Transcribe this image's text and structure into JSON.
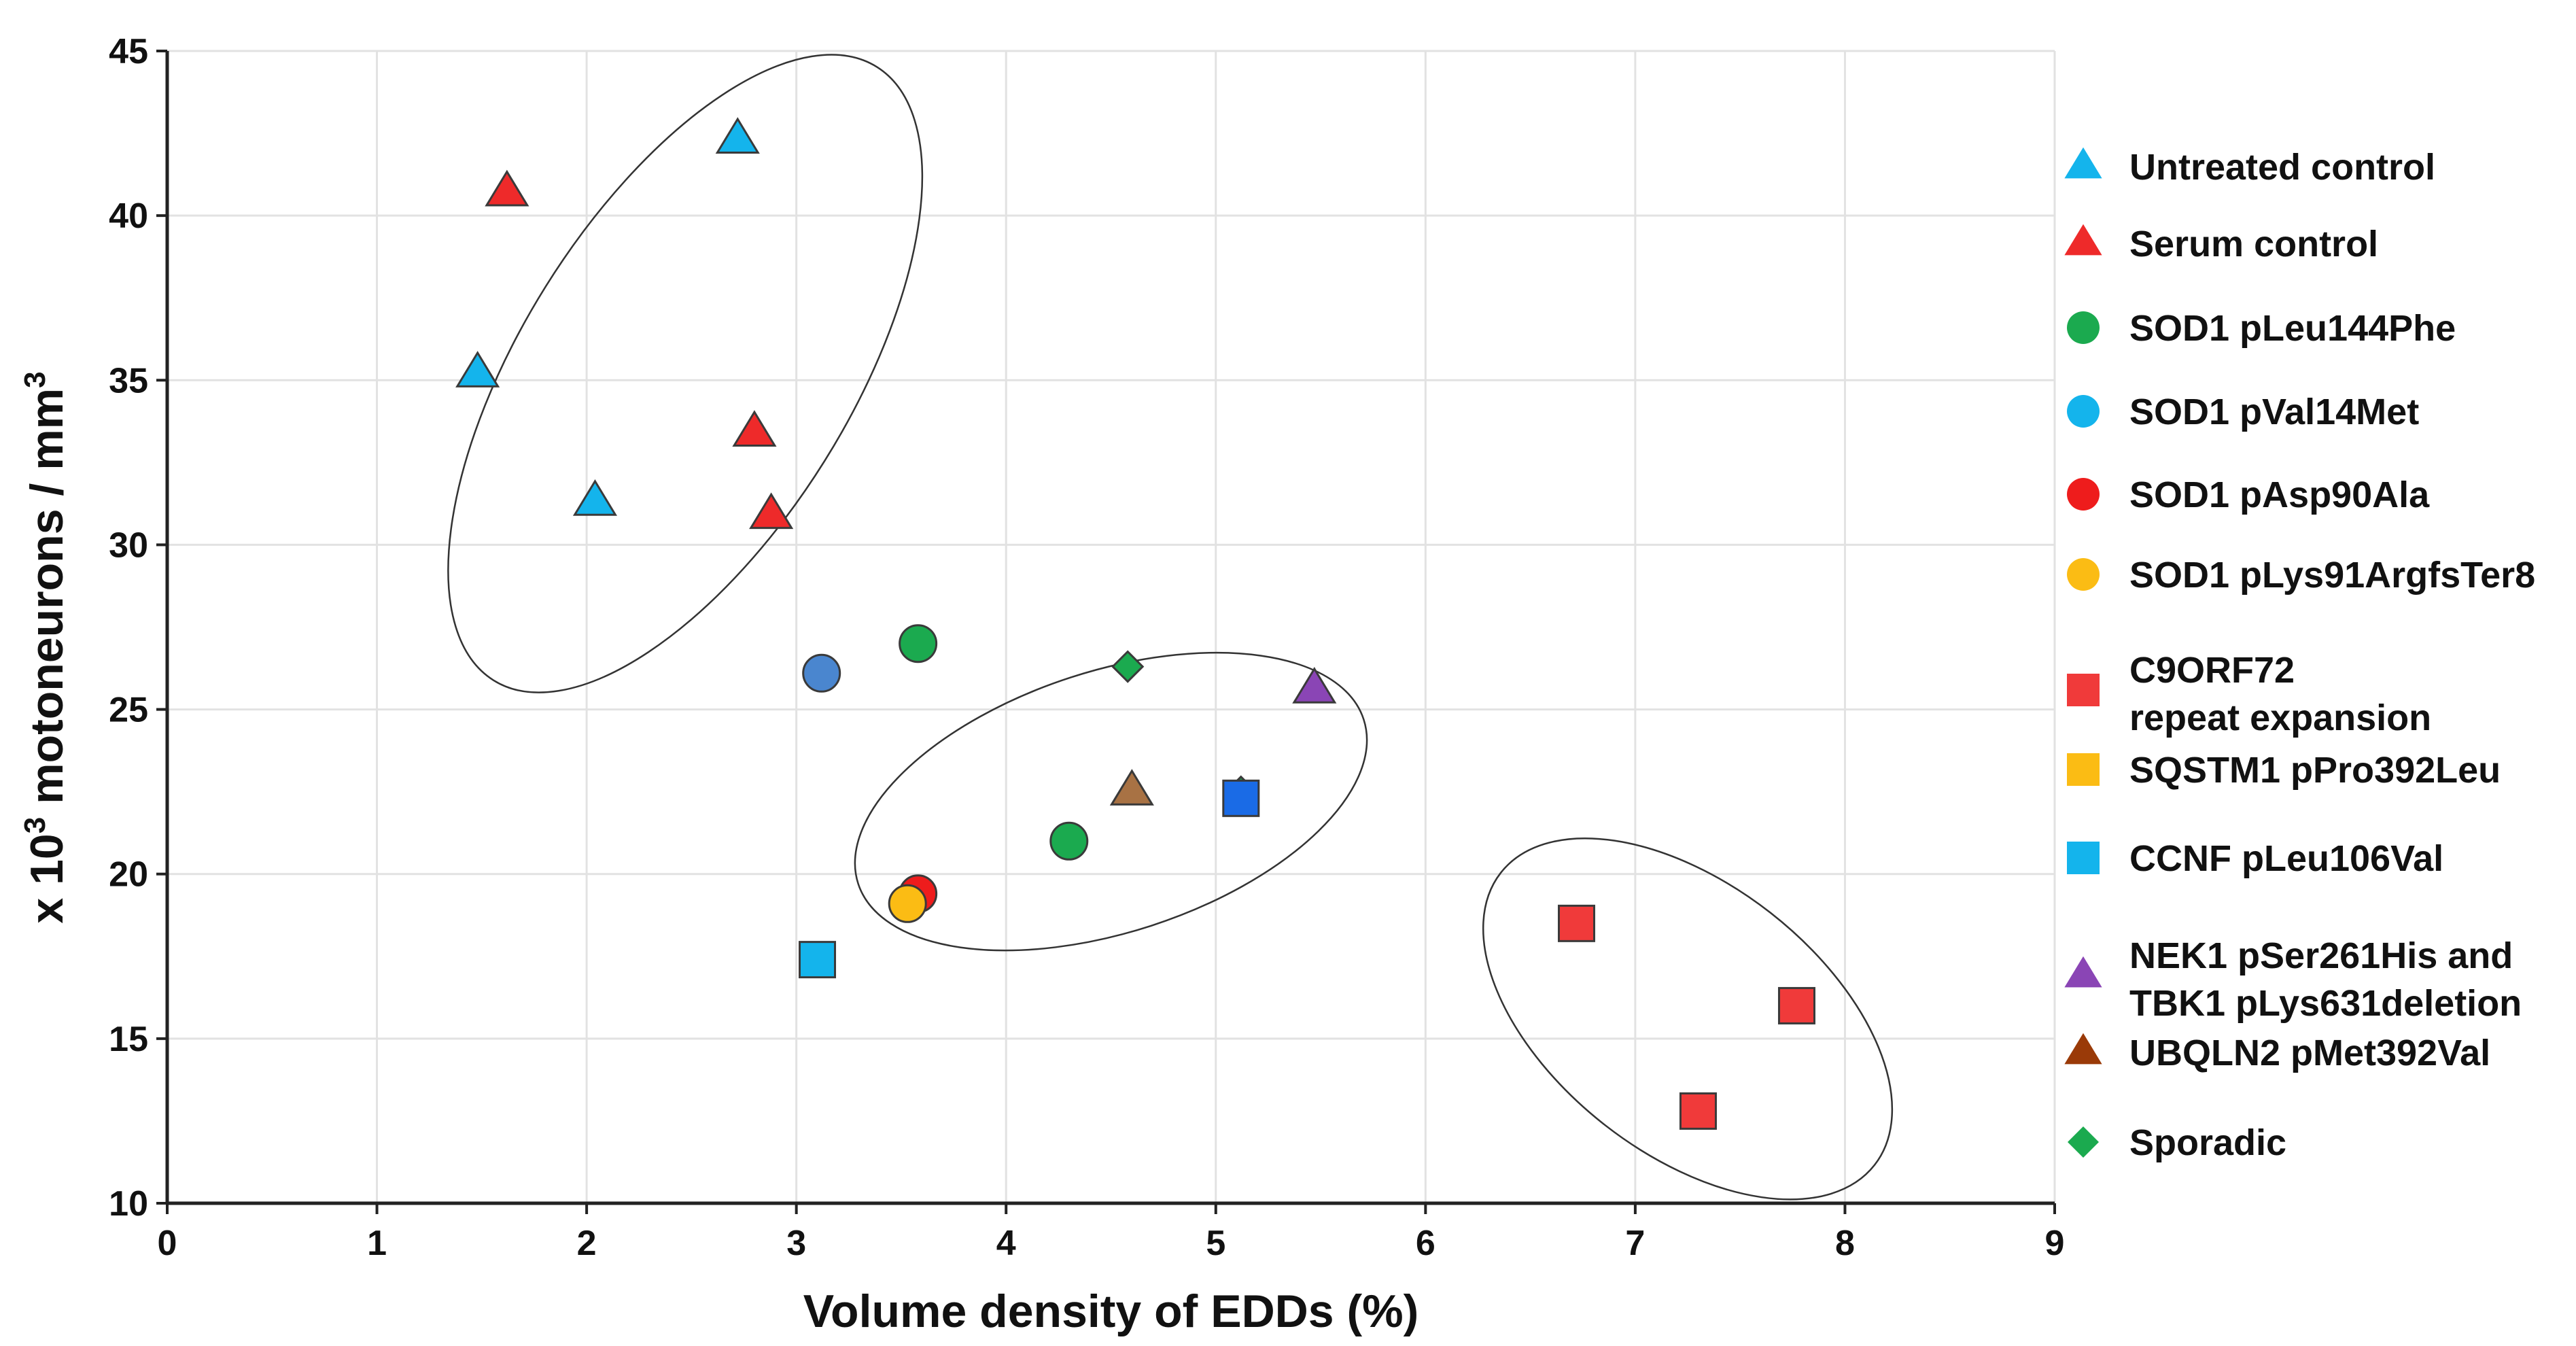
{
  "chart_data": {
    "type": "scatter",
    "title": "",
    "xlabel": "Volume density of EDDs (%)",
    "ylabel": {
      "prefix": "x 10",
      "sup1": "3",
      "middle": " motoneurons / mm",
      "sup2": "3"
    },
    "xlim": [
      0,
      9
    ],
    "ylim": [
      10,
      45
    ],
    "x_ticks": [
      "0",
      "1",
      "2",
      "3",
      "4",
      "5",
      "6",
      "7",
      "8",
      "9"
    ],
    "y_ticks": [
      "10",
      "15",
      "20",
      "25",
      "30",
      "35",
      "40",
      "45"
    ],
    "grid": true,
    "legend_position": "right",
    "series": [
      {
        "name": "Untreated control",
        "legend_lines": [
          "Untreated control"
        ],
        "marker": "triangle",
        "color": "#14B4EC",
        "points": [
          [
            2.72,
            42.3
          ],
          [
            1.48,
            35.2
          ],
          [
            2.04,
            31.3
          ]
        ]
      },
      {
        "name": "Serum control",
        "legend_lines": [
          "Serum control"
        ],
        "marker": "triangle",
        "color": "#EE2A2A",
        "points": [
          [
            1.62,
            40.7
          ],
          [
            2.8,
            33.4
          ],
          [
            2.88,
            30.9
          ]
        ]
      },
      {
        "name": "SOD1 pLeu144Phe",
        "legend_lines": [
          "SOD1 pLeu144Phe"
        ],
        "marker": "circle",
        "color": "#1BAA4F",
        "points": [
          [
            3.58,
            27.0
          ],
          [
            4.3,
            21.0
          ]
        ]
      },
      {
        "name": "SOD1 pVal14Met",
        "legend_lines": [
          "SOD1 pVal14Met"
        ],
        "marker": "circle",
        "color": "#14B4EC",
        "plot_color": "#4A86CF",
        "points": [
          [
            3.12,
            26.1
          ]
        ]
      },
      {
        "name": "SOD1 pAsp90Ala",
        "legend_lines": [
          "SOD1 pAsp90Ala"
        ],
        "marker": "circle",
        "color": "#EE1C1C",
        "points": [
          [
            3.58,
            19.4
          ]
        ]
      },
      {
        "name": "SOD1 pLys91ArgfsTer8",
        "legend_lines": [
          "SOD1 pLys91ArgfsTer8"
        ],
        "marker": "circle",
        "color": "#FBBC14",
        "points": [
          [
            3.53,
            19.1
          ]
        ]
      },
      {
        "name": "C9ORF72 repeat expansion",
        "legend_lines": [
          "C9ORF72",
          "repeat expansion"
        ],
        "marker": "square",
        "color": "#F03A3A",
        "points": [
          [
            6.72,
            18.5
          ],
          [
            7.77,
            16.0
          ],
          [
            7.3,
            12.8
          ]
        ]
      },
      {
        "name": "SQSTM1 pPro392Leu",
        "legend_lines": [
          "SQSTM1 pPro392Leu"
        ],
        "marker": "square",
        "color": "#FBBC14",
        "points": []
      },
      {
        "name": "CCNF pLeu106Val",
        "legend_lines": [
          "CCNF pLeu106Val"
        ],
        "marker": "square",
        "color": "#14B4EC",
        "points": [
          [
            3.1,
            17.4
          ]
        ]
      },
      {
        "name": "NEK1 pSer261His and TBK1 pLys631deletion",
        "legend_lines": [
          "NEK1 pSer261His and",
          "TBK1 pLys631deletion"
        ],
        "marker": "triangle",
        "color": "#8A45B5",
        "points": [
          [
            5.47,
            25.6
          ]
        ]
      },
      {
        "name": "UBQLN2 pMet392Val",
        "legend_lines": [
          "UBQLN2 pMet392Val"
        ],
        "marker": "triangle",
        "color": "#A87244",
        "legend_color": "#9A3A08",
        "points": [
          [
            4.6,
            22.5
          ]
        ]
      },
      {
        "name": "Sporadic",
        "legend_lines": [
          "Sporadic"
        ],
        "marker": "diamond",
        "color": "#1BAA4F",
        "points": [
          [
            4.58,
            26.3
          ],
          [
            5.12,
            22.5
          ]
        ]
      }
    ],
    "extra_markers": [
      {
        "marker": "square",
        "color": "#1A6BE6",
        "point": [
          5.12,
          22.3
        ]
      }
    ],
    "cluster_ellipses": [
      {
        "center": [
          2.47,
          35.2
        ],
        "radius_x_px": 242,
        "radius_y_px": 532,
        "angle_deg": 32
      },
      {
        "center": [
          4.5,
          22.2
        ],
        "radius_x_px": 391,
        "radius_y_px": 192,
        "angle_deg": -18
      },
      {
        "center": [
          7.25,
          15.6
        ],
        "radius_x_px": 349,
        "radius_y_px": 198,
        "angle_deg": 38
      }
    ]
  }
}
